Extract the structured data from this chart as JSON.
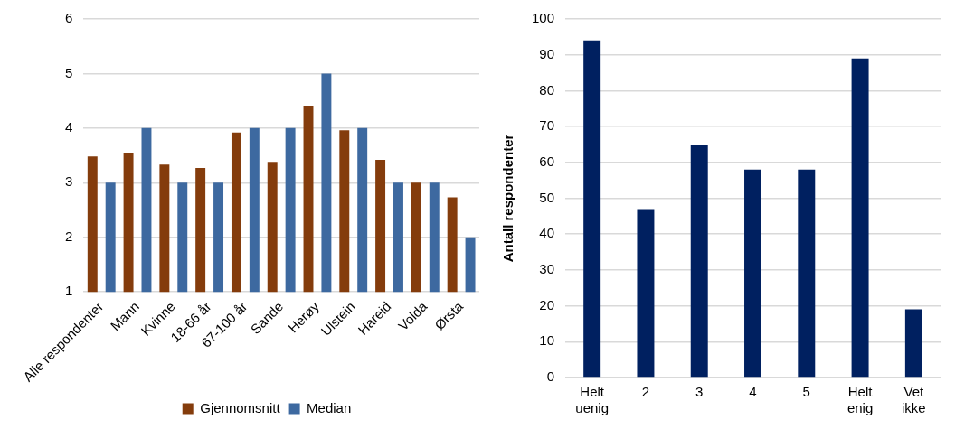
{
  "chart_data": [
    {
      "type": "bar",
      "categories": [
        "Alle respondenter",
        "Mann",
        "Kvinne",
        "18-66 år",
        "67-100 år",
        "Sande",
        "Herøy",
        "Ulstein",
        "Hareid",
        "Volda",
        "Ørsta"
      ],
      "series": [
        {
          "name": "Gjennomsnitt",
          "color": "#843c0c",
          "values": [
            3.48,
            3.55,
            3.33,
            3.27,
            3.92,
            3.38,
            4.41,
            3.96,
            3.42,
            3.0,
            2.73
          ]
        },
        {
          "name": "Median",
          "color": "#3d69a0",
          "values": [
            3,
            4,
            3,
            3,
            4,
            4,
            5,
            4,
            3,
            3,
            2
          ]
        }
      ],
      "ylim": [
        1,
        6
      ],
      "yticks": [
        1,
        2,
        3,
        4,
        5,
        6
      ],
      "grid": "y",
      "legend": "bottom"
    },
    {
      "type": "bar",
      "categories": [
        "Helt uenig",
        "2",
        "3",
        "4",
        "5",
        "Helt enig",
        "Vet ikke"
      ],
      "series": [
        {
          "color": "#002060",
          "values": [
            94,
            47,
            65,
            58,
            58,
            89,
            19
          ]
        }
      ],
      "ylabel": "Antall respondenter",
      "ylim": [
        0,
        100
      ],
      "yticks": [
        0,
        10,
        20,
        30,
        40,
        50,
        60,
        70,
        80,
        90,
        100
      ],
      "grid": "y",
      "legend": false
    }
  ]
}
